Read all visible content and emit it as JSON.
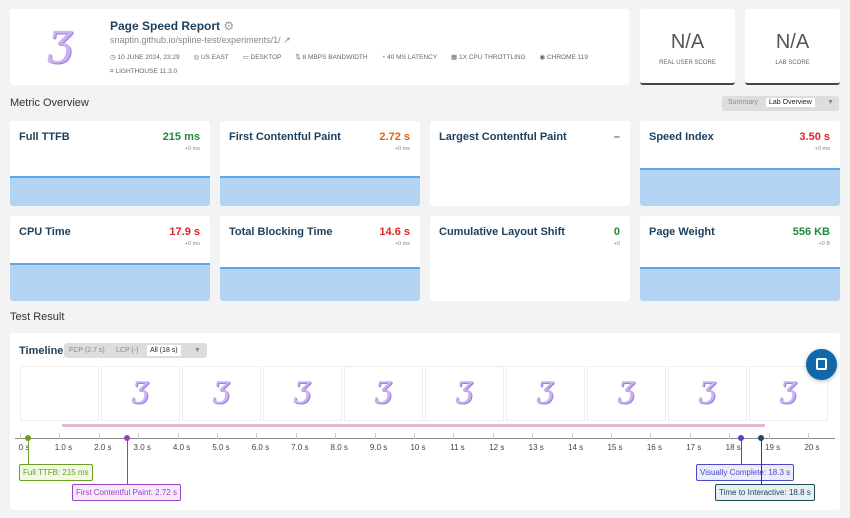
{
  "header": {
    "title": "Page Speed Report",
    "url": "snaptin.github.io/spline-test/experiments/1/",
    "meta": [
      "10 JUNE 2024, 23:29",
      "US EAST",
      "DESKTOP",
      "8 MBPS BANDWIDTH",
      "40 MS LATENCY",
      "1X CPU THROTTLING",
      "CHROME 119",
      "LIGHTHOUSE 11.3.0"
    ]
  },
  "scores": [
    {
      "value": "N/A",
      "label": "REAL USER SCORE"
    },
    {
      "value": "N/A",
      "label": "LAB SCORE"
    }
  ],
  "metric_overview": {
    "title": "Metric Overview",
    "toggle": [
      "Summary",
      "Lab Overview"
    ]
  },
  "metrics": [
    {
      "name": "Full TTFB",
      "value": "215 ms",
      "delta": "+0 ms",
      "color": "#1e8a3c",
      "fill": 0.35
    },
    {
      "name": "First Contentful Paint",
      "value": "2.72 s",
      "delta": "+0 ms",
      "color": "#e0610e",
      "fill": 0.35
    },
    {
      "name": "Largest Contentful Paint",
      "value": "–",
      "delta": "",
      "color": "#666",
      "fill": 0
    },
    {
      "name": "Speed Index",
      "value": "3.50 s",
      "delta": "+0 ms",
      "color": "#e02424",
      "fill": 0.45
    },
    {
      "name": "CPU Time",
      "value": "17.9 s",
      "delta": "+0 ms",
      "color": "#e02424",
      "fill": 0.45
    },
    {
      "name": "Total Blocking Time",
      "value": "14.6 s",
      "delta": "+0 ms",
      "color": "#e02424",
      "fill": 0.4
    },
    {
      "name": "Cumulative Layout Shift",
      "value": "0",
      "delta": "+0",
      "color": "#1e8a3c",
      "fill": 0
    },
    {
      "name": "Page Weight",
      "value": "556 KB",
      "delta": "+0 B",
      "color": "#1e8a3c",
      "fill": 0.4
    }
  ],
  "test_result": {
    "title": "Test Result"
  },
  "timeline": {
    "title": "Timeline",
    "filters": [
      "FCP (2.7 s)",
      "LCP (-)",
      "All (18 s)"
    ],
    "ticks": [
      "0 s",
      "1.0 s",
      "2.0 s",
      "3.0 s",
      "4.0 s",
      "5.0 s",
      "6.0 s",
      "7.0 s",
      "8.0 s",
      "9.0 s",
      "10 s",
      "11 s",
      "12 s",
      "13 s",
      "14 s",
      "15 s",
      "16 s",
      "17 s",
      "18 s",
      "19 s",
      "20 s"
    ],
    "markers": [
      {
        "label": "Full TTFB: 215 ms",
        "time": 0.215,
        "color": "#6aa021",
        "bg": "#f1f8e6"
      },
      {
        "label": "First Contentful Paint: 2.72 s",
        "time": 2.72,
        "color": "#9b3fc4",
        "bg": "#f6ebfb"
      },
      {
        "label": "Visually Complete: 18.3 s",
        "time": 18.3,
        "color": "#4a4ac8",
        "bg": "#ececfb"
      },
      {
        "label": "Time to Interactive: 18.8 s",
        "time": 18.8,
        "color": "#1d4a5c",
        "bg": "#e8eff2"
      }
    ]
  }
}
